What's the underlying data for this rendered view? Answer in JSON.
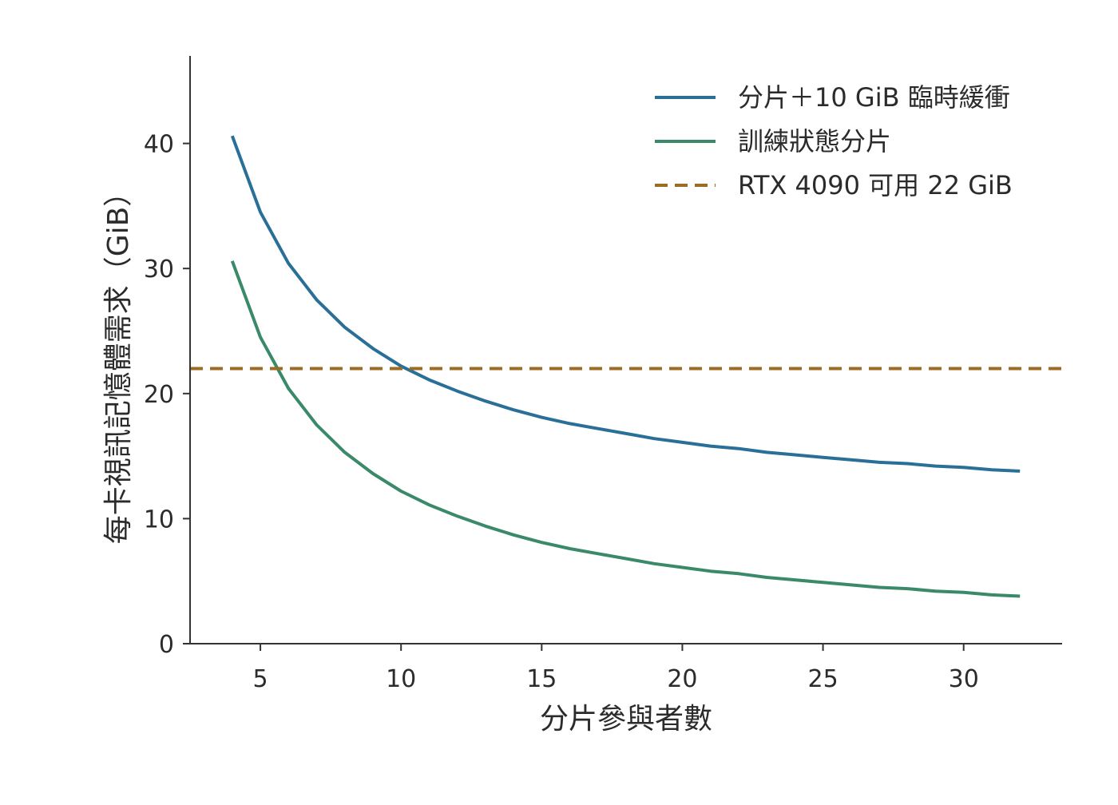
{
  "chart_data": {
    "type": "line",
    "title": "",
    "xlabel": "分片參與者數",
    "ylabel": "每卡視訊記憶體需求（GiB）",
    "xlim": [
      2.5,
      33.5
    ],
    "ylim": [
      0,
      47
    ],
    "xticks": [
      5,
      10,
      15,
      20,
      25,
      30
    ],
    "yticks": [
      0,
      10,
      20,
      30,
      40
    ],
    "grid": false,
    "legend_position": "top-right",
    "series": [
      {
        "name": "分片＋10 GiB 臨時緩衝",
        "color": "#2a6f97",
        "style": "solid",
        "x": [
          4,
          5,
          6,
          7,
          8,
          9,
          10,
          11,
          12,
          13,
          14,
          15,
          16,
          17,
          18,
          19,
          20,
          21,
          22,
          23,
          24,
          25,
          26,
          27,
          28,
          29,
          30,
          31,
          32
        ],
        "y": [
          40.6,
          34.5,
          30.4,
          27.5,
          25.3,
          23.6,
          22.2,
          21.1,
          20.2,
          19.4,
          18.7,
          18.1,
          17.6,
          17.2,
          16.8,
          16.4,
          16.1,
          15.8,
          15.6,
          15.3,
          15.1,
          14.9,
          14.7,
          14.5,
          14.4,
          14.2,
          14.1,
          13.9,
          13.8
        ]
      },
      {
        "name": "訓練狀態分片",
        "color": "#3a8a6a",
        "style": "solid",
        "x": [
          4,
          5,
          6,
          7,
          8,
          9,
          10,
          11,
          12,
          13,
          14,
          15,
          16,
          17,
          18,
          19,
          20,
          21,
          22,
          23,
          24,
          25,
          26,
          27,
          28,
          29,
          30,
          31,
          32
        ],
        "y": [
          30.6,
          24.5,
          20.4,
          17.5,
          15.3,
          13.6,
          12.2,
          11.1,
          10.2,
          9.4,
          8.7,
          8.1,
          7.6,
          7.2,
          6.8,
          6.4,
          6.1,
          5.8,
          5.6,
          5.3,
          5.1,
          4.9,
          4.7,
          4.5,
          4.4,
          4.2,
          4.1,
          3.9,
          3.8
        ]
      },
      {
        "name": "RTX 4090 可用 22 GiB",
        "color": "#9c6b24",
        "style": "dashed",
        "type": "hline",
        "y": 22
      }
    ]
  }
}
